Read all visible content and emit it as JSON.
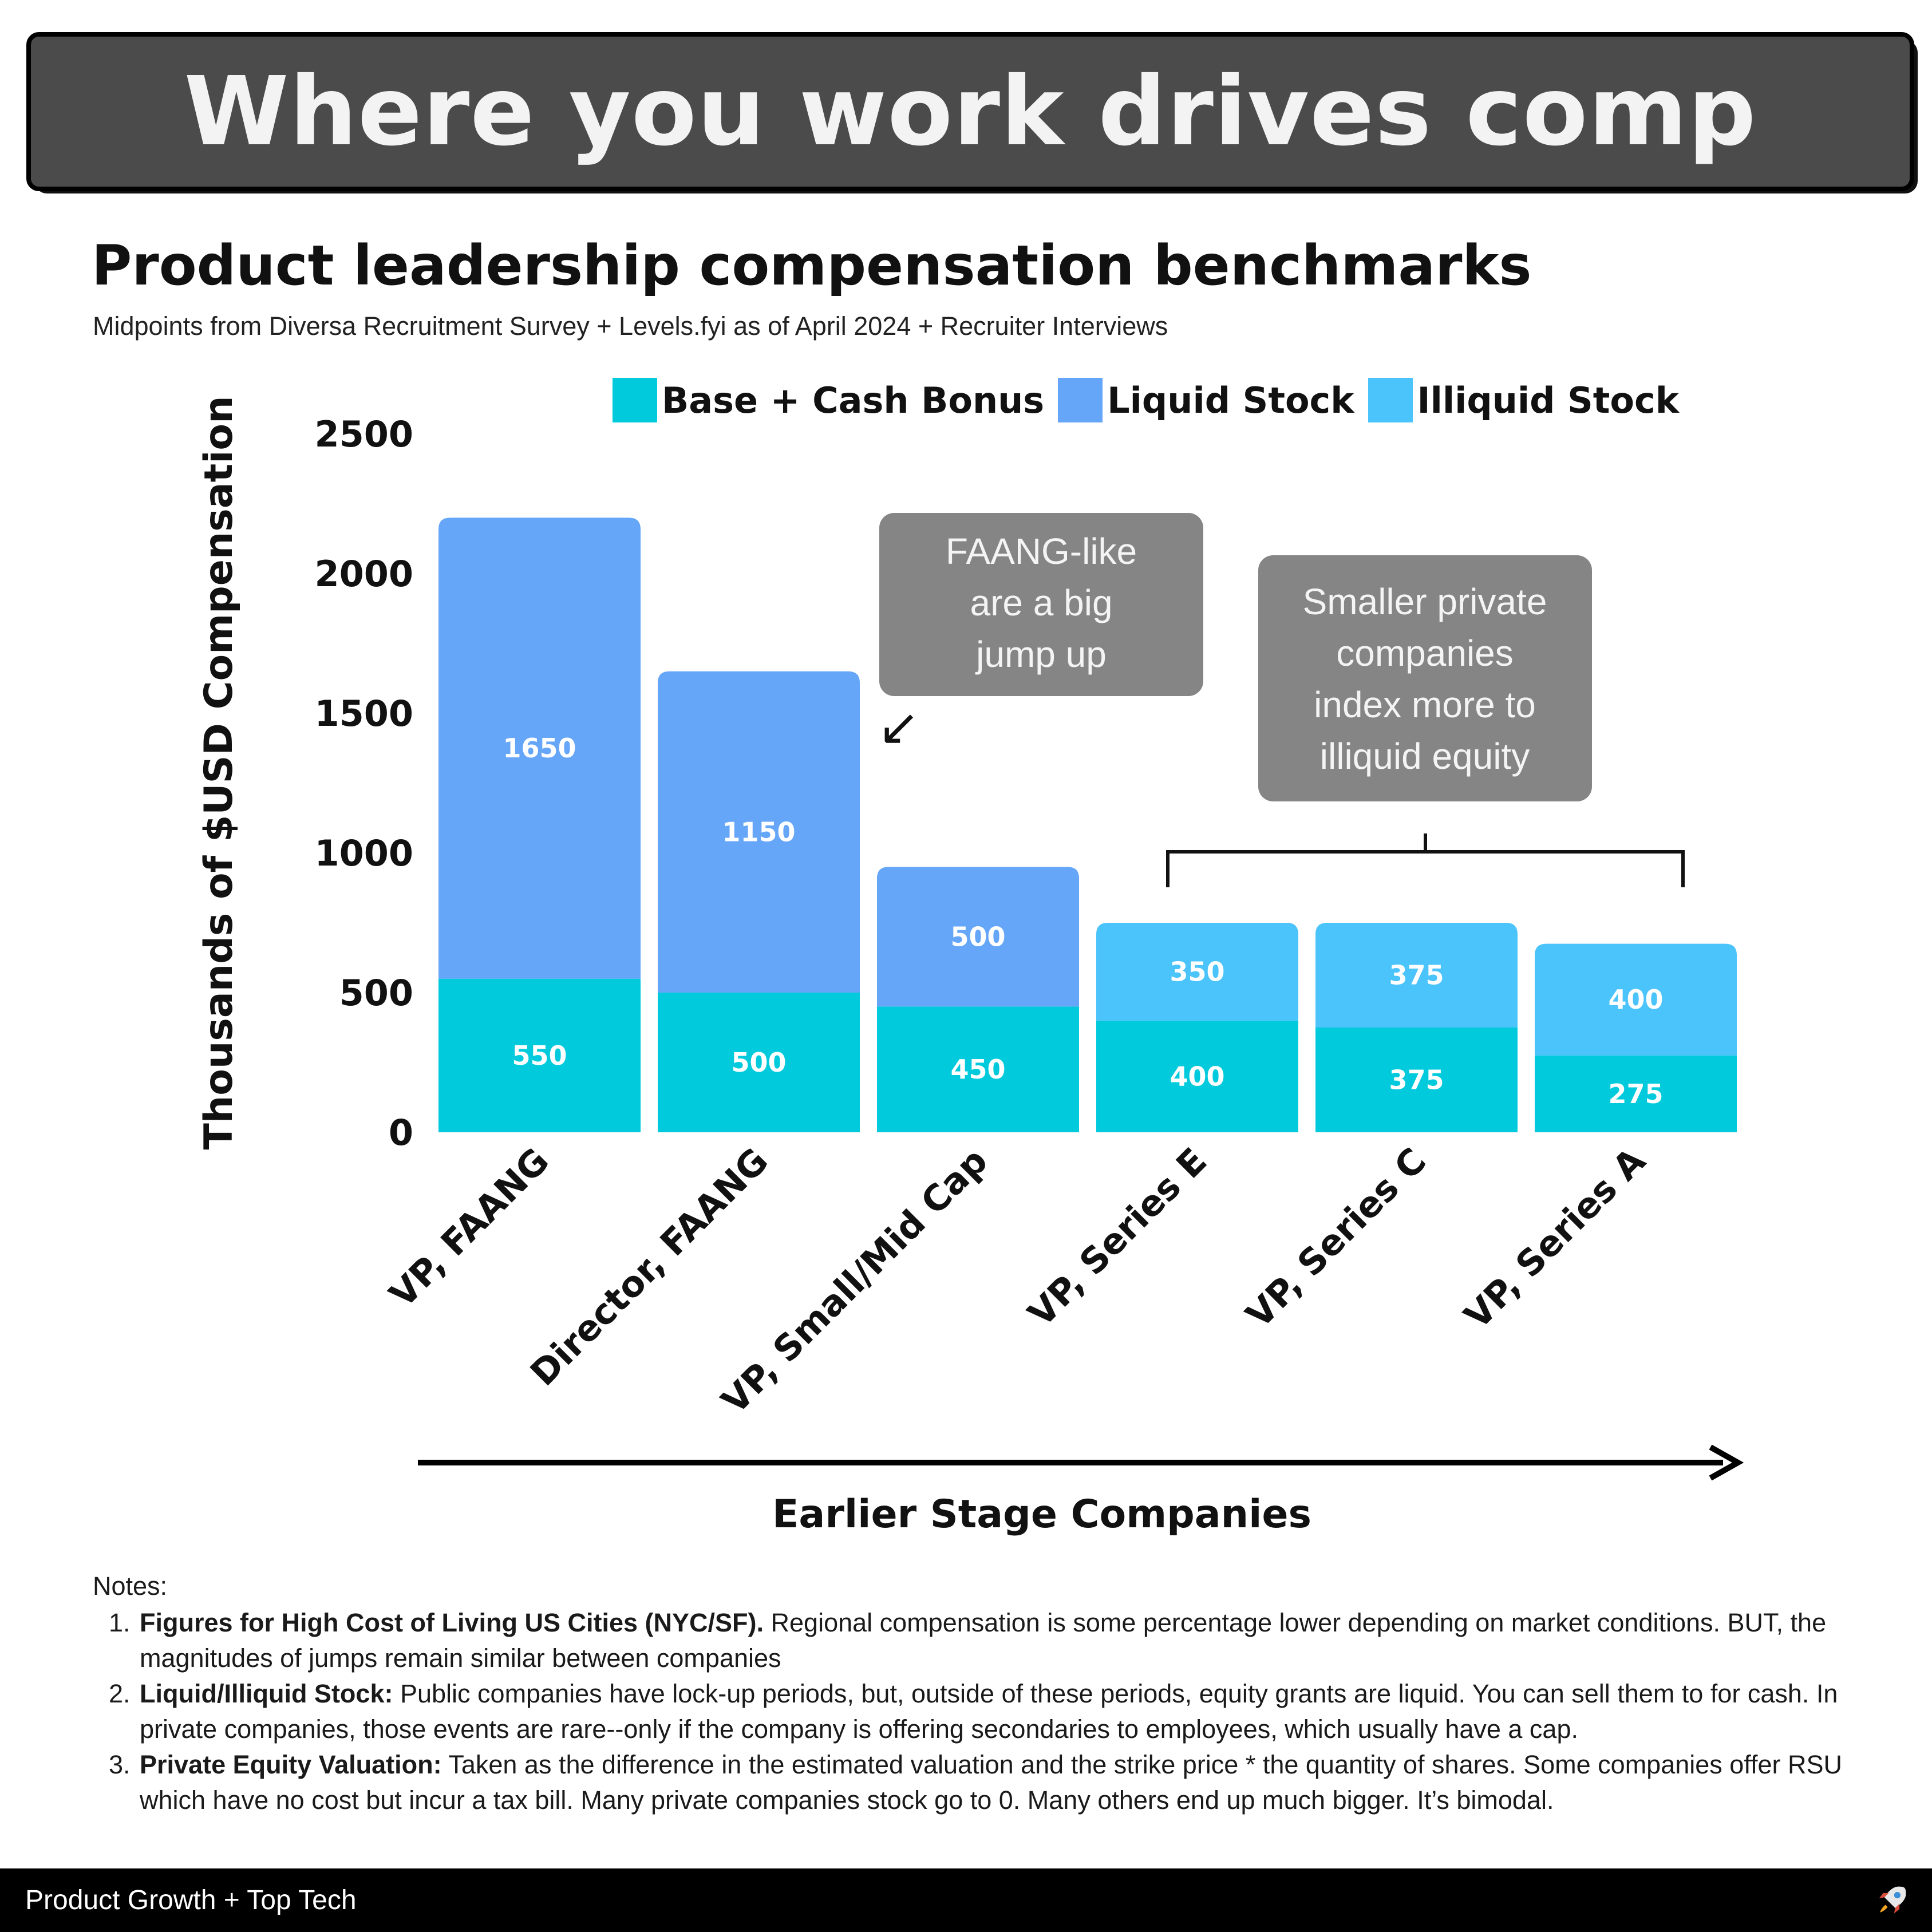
{
  "banner": {
    "title": "Where you work drives comp"
  },
  "chart_data": {
    "type": "bar",
    "stacked": true,
    "title": "Product leadership compensation benchmarks",
    "subtitle": "Midpoints from Diversa Recruitment Survey + Levels.fyi as of April 2024 + Recruiter Interviews",
    "ylabel": "Thousands of $USD Compensation",
    "xlabel": "Earlier Stage Companies",
    "ylim": [
      0,
      2500
    ],
    "yticks": [
      0,
      500,
      1000,
      1500,
      2000,
      2500
    ],
    "grid": false,
    "legend_position": "top",
    "categories": [
      "VP, FAANG",
      "Director, FAANG",
      "VP, Small/Mid Cap",
      "VP, Series E",
      "VP, Series C",
      "VP, Series A"
    ],
    "series": [
      {
        "name": "Base + Cash Bonus",
        "color": "#00cadc",
        "values": [
          550,
          500,
          450,
          400,
          375,
          275
        ]
      },
      {
        "name": "Liquid Stock",
        "color": "#66a6f8",
        "values": [
          1650,
          1150,
          500,
          0,
          0,
          0
        ]
      },
      {
        "name": "Illiquid Stock",
        "color": "#4bc3fb",
        "values": [
          0,
          0,
          0,
          350,
          375,
          400
        ]
      }
    ],
    "annotations": [
      {
        "text": "FAANG-like are a big jump up",
        "lines": [
          "FAANG-like",
          "are a big",
          "jump up"
        ],
        "target": "Director, FAANG"
      },
      {
        "text": "Smaller private companies index more to illiquid equity",
        "lines": [
          "Smaller private",
          "companies",
          "index more to",
          "illiquid equity"
        ],
        "targets": [
          "VP, Series E",
          "VP, Series C",
          "VP, Series A"
        ]
      }
    ],
    "arrow_glyph": "↙"
  },
  "notes": {
    "heading": "Notes:",
    "items": [
      {
        "bold": "Figures for High Cost of Living US Cities (NYC/SF).",
        "text": " Regional compensation is some percentage lower depending on market conditions. BUT, the magnitudes of jumps remain similar between companies"
      },
      {
        "bold": "Liquid/Illiquid Stock:",
        "text": " Public companies have lock-up periods, but, outside of these periods, equity grants are liquid. You can sell them to for cash. In private companies, those events  are rare--only if the company is offering secondaries to employees, which usually have a cap."
      },
      {
        "bold": "Private Equity Valuation:",
        "text": " Taken as the difference in the estimated valuation and the strike price * the quantity of shares. Some companies offer RSU which have no cost but incur a tax bill. Many private companies stock go to 0. Many others end up much bigger. It’s bimodal."
      }
    ]
  },
  "footer": {
    "label": "Product Growth + Top Tech",
    "icon": "rocket-icon"
  }
}
